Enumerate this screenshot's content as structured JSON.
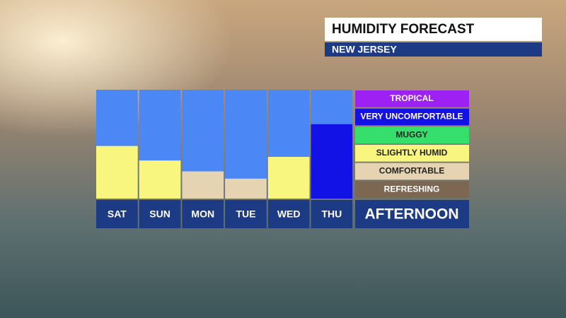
{
  "chart_data": {
    "type": "bar",
    "title": "HUMIDITY FORECAST",
    "subtitle": "NEW JERSEY",
    "period_label": "AFTERNOON",
    "categories": [
      "SAT",
      "SUN",
      "MON",
      "TUE",
      "WED",
      "THU"
    ],
    "values": [
      2.9,
      2.1,
      1.5,
      1.1,
      2.3,
      4.1
    ],
    "ylim": [
      0,
      6
    ],
    "background_color": "#4b87f5",
    "levels": [
      {
        "name": "REFRESHING",
        "color": "#7b6752"
      },
      {
        "name": "COMFORTABLE",
        "color": "#e6d3b1"
      },
      {
        "name": "SLIGHTLY HUMID",
        "color": "#f8f67e"
      },
      {
        "name": "MUGGY",
        "color": "#34df6c"
      },
      {
        "name": "VERY UNCOMFORTABLE",
        "color": "#1212e6"
      },
      {
        "name": "TROPICAL",
        "color": "#9d21f2"
      }
    ]
  }
}
